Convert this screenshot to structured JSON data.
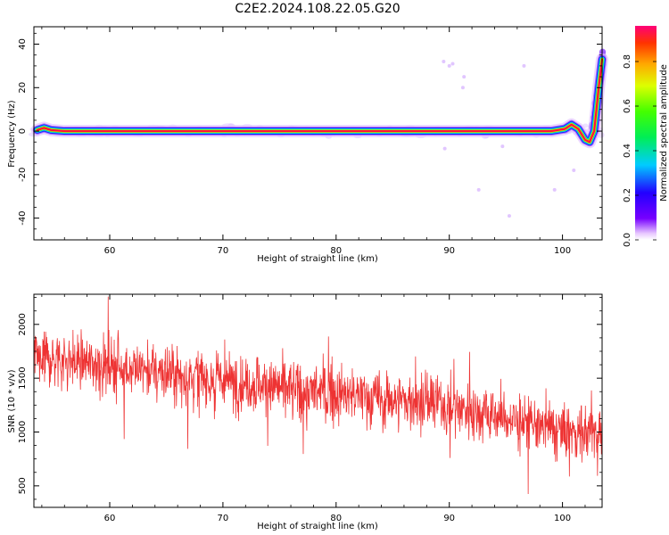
{
  "figure_title": "C2E2.2024.108.22.05.G20",
  "chart_data": [
    {
      "type": "heatmap",
      "title": "",
      "xlabel": "Height of straight line (km)",
      "ylabel": "Frequency (Hz)",
      "xlim": [
        53.3,
        103.5
      ],
      "ylim": [
        -50,
        48
      ],
      "xticks": [
        60,
        70,
        80,
        90,
        100
      ],
      "yticks": [
        -40,
        -20,
        0,
        20,
        40
      ],
      "grid": false,
      "colormap": "rainbow (magenta at high, violet at low)",
      "colorbar": {
        "label": "Normalized spectral amplitude",
        "range": [
          0.0,
          0.96
        ],
        "ticks": [
          0.0,
          0.2,
          0.4,
          0.6,
          0.8
        ],
        "tick_labels": [
          "0.0",
          "0.2",
          "0.4",
          "0.6",
          "0.8"
        ]
      },
      "ridge": {
        "description": "Narrow high-amplitude line near 0 Hz across all heights, bending near the top",
        "points": [
          {
            "x": 53.6,
            "y": 0.5
          },
          {
            "x": 54.2,
            "y": 1.5
          },
          {
            "x": 54.8,
            "y": 0.5
          },
          {
            "x": 56,
            "y": 0
          },
          {
            "x": 70,
            "y": 0
          },
          {
            "x": 85,
            "y": 0
          },
          {
            "x": 99,
            "y": 0
          },
          {
            "x": 100.2,
            "y": 1
          },
          {
            "x": 100.8,
            "y": 3
          },
          {
            "x": 101.4,
            "y": 1
          },
          {
            "x": 102,
            "y": -4
          },
          {
            "x": 102.4,
            "y": -5
          },
          {
            "x": 102.8,
            "y": 0
          },
          {
            "x": 103.2,
            "y": 20
          },
          {
            "x": 103.5,
            "y": 33
          }
        ]
      }
    },
    {
      "type": "line",
      "title": "",
      "xlabel": "Height of straight line (km)",
      "ylabel": "SNR (10 * v/v)",
      "xlim": [
        53.3,
        103.5
      ],
      "ylim": [
        300,
        2280
      ],
      "xticks": [
        60,
        70,
        80,
        90,
        100
      ],
      "yticks": [
        500,
        1000,
        1500,
        2000
      ],
      "grid": false,
      "line_color": "#ee3333",
      "trend": {
        "x": [
          53.3,
          60,
          70,
          80,
          90,
          100,
          103.5
        ],
        "y": [
          1700,
          1620,
          1480,
          1350,
          1250,
          1000,
          1000
        ]
      },
      "noise_std_approx": 170,
      "range_observed": [
        370,
        2250
      ]
    }
  ]
}
